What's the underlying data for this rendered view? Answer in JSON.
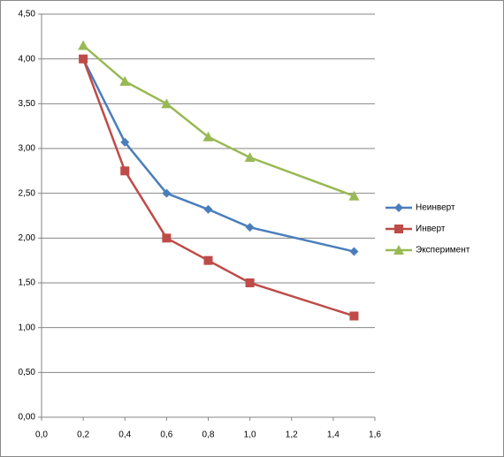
{
  "chart_data": {
    "type": "line",
    "series": [
      {
        "name": "Неинверт",
        "color": "#4a7ebb",
        "marker": "diamond",
        "x": [
          0.2,
          0.4,
          0.6,
          0.8,
          1.0,
          1.5
        ],
        "values": [
          4.0,
          3.07,
          2.5,
          2.32,
          2.12,
          1.85
        ]
      },
      {
        "name": "Инверт",
        "color": "#be4b48",
        "marker": "square",
        "x": [
          0.2,
          0.4,
          0.6,
          0.8,
          1.0,
          1.5
        ],
        "values": [
          4.0,
          2.75,
          2.0,
          1.75,
          1.5,
          1.13
        ]
      },
      {
        "name": "Эксперимент",
        "color": "#98b954",
        "marker": "triangle",
        "x": [
          0.2,
          0.4,
          0.6,
          0.8,
          1.0,
          1.5
        ],
        "values": [
          4.15,
          3.75,
          3.5,
          3.13,
          2.9,
          2.47
        ]
      }
    ],
    "xlim": [
      0,
      1.6
    ],
    "xticks": [
      {
        "value": 0,
        "label": "0,0"
      },
      {
        "value": 0.2,
        "label": "0,2"
      },
      {
        "value": 0.4,
        "label": "0,4"
      },
      {
        "value": 0.6,
        "label": "0,6"
      },
      {
        "value": 0.8,
        "label": "0,8"
      },
      {
        "value": 1.0,
        "label": "1,0"
      },
      {
        "value": 1.2,
        "label": "1,2"
      },
      {
        "value": 1.4,
        "label": "1,4"
      },
      {
        "value": 1.6,
        "label": "1,6"
      }
    ],
    "ylim": [
      0,
      4.5
    ],
    "yticks": [
      {
        "value": 0,
        "label": "0,00"
      },
      {
        "value": 0.5,
        "label": "0,50"
      },
      {
        "value": 1.0,
        "label": "1,00"
      },
      {
        "value": 1.5,
        "label": "1,50"
      },
      {
        "value": 2.0,
        "label": "2,00"
      },
      {
        "value": 2.5,
        "label": "2,50"
      },
      {
        "value": 3.0,
        "label": "3,00"
      },
      {
        "value": 3.5,
        "label": "3,50"
      },
      {
        "value": 4.0,
        "label": "4,00"
      },
      {
        "value": 4.5,
        "label": "4,50"
      }
    ],
    "grid": true,
    "legend": "right"
  }
}
